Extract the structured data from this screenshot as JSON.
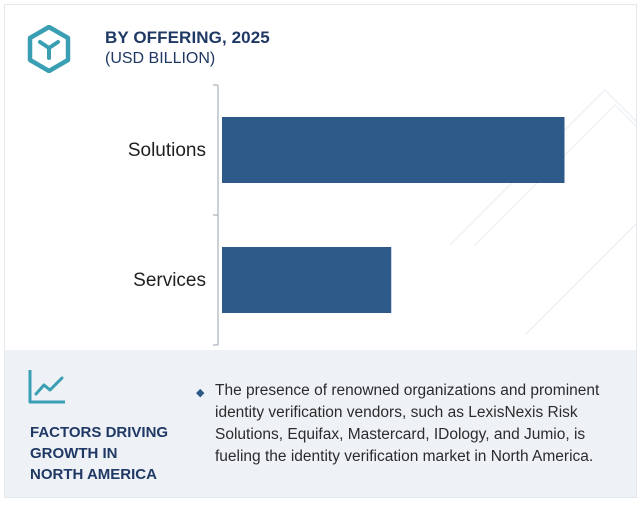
{
  "header": {
    "title": "BY OFFERING, 2025",
    "subtitle": "(USD BILLION)"
  },
  "chart_data": {
    "type": "bar",
    "orientation": "horizontal",
    "title": "BY OFFERING, 2025",
    "subtitle": "(USD BILLION)",
    "categories": [
      "Solutions",
      "Services"
    ],
    "values": [
      6.6,
      3.3
    ],
    "xlim": [
      0,
      8
    ],
    "grid": false,
    "legend": "none",
    "value_labels_shown": false
  },
  "colors": {
    "bar": "#2e5a8a",
    "accent": "#3a9fb3",
    "heading": "#1f3864",
    "panel_bg": "#eef2f7"
  },
  "factors": {
    "icon": "trend-line-icon",
    "heading_lines": [
      "FACTORS DRIVING",
      "GROWTH IN",
      "NORTH AMERICA"
    ],
    "text": "The presence of renowned organizations and prominent identity verification vendors, such as LexisNexis Risk Solutions, Equifax, Mastercard, IDology, and Jumio, is fueling the identity verification market in North America."
  }
}
